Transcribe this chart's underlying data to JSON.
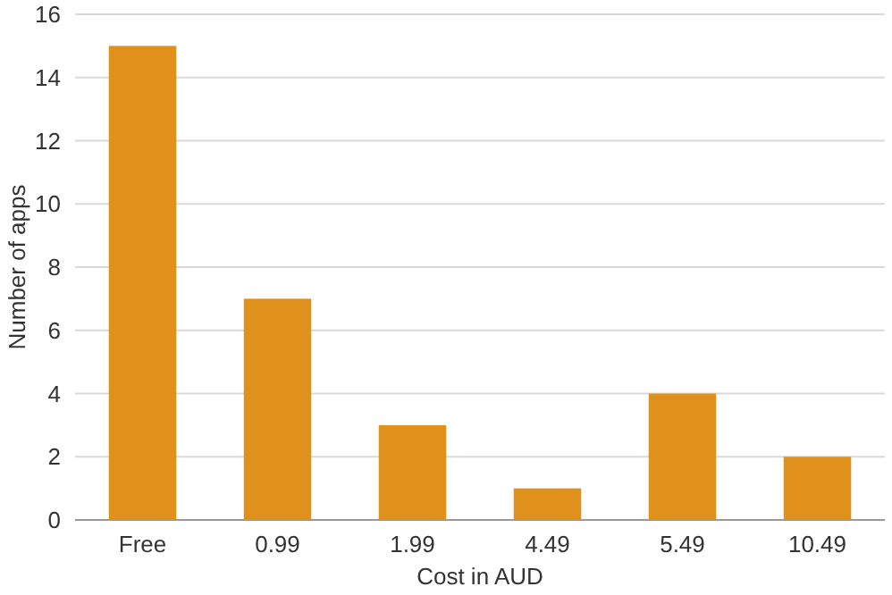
{
  "chart_data": {
    "type": "bar",
    "xlabel": "Cost in AUD",
    "ylabel": "Number of apps",
    "categories": [
      "Free",
      "0.99",
      "1.99",
      "4.49",
      "5.49",
      "10.49"
    ],
    "values": [
      15,
      7,
      3,
      1,
      4,
      2
    ],
    "color": "#df911b",
    "ylim": [
      0,
      16
    ],
    "yticks": [
      0,
      2,
      4,
      6,
      8,
      10,
      12,
      14,
      16
    ],
    "grid": "y"
  }
}
